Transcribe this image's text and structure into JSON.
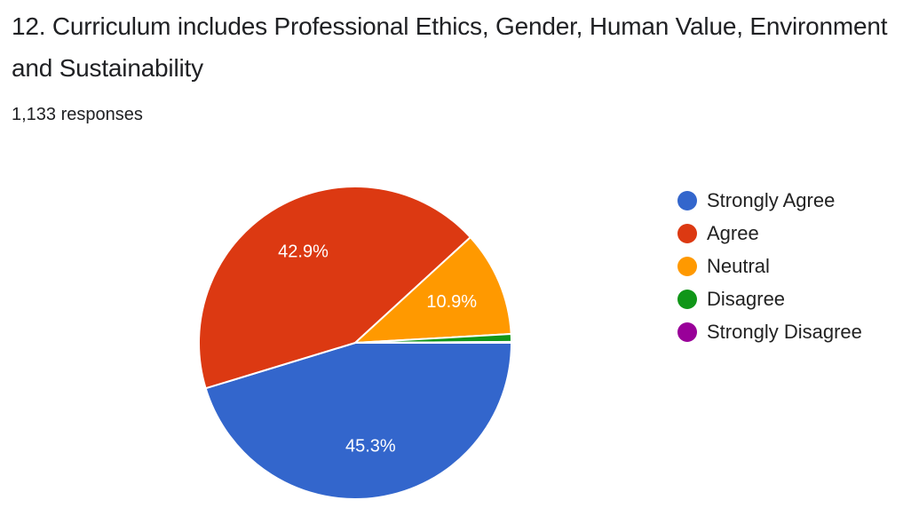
{
  "question": {
    "title": "12. Curriculum includes Professional Ethics, Gender, Human Value, Environment and Sustainability",
    "response_count": "1,133 responses"
  },
  "chart_data": {
    "type": "pie",
    "title": "12. Curriculum includes Professional Ethics, Gender, Human Value, Environment and Sustainability",
    "categories": [
      "Strongly Agree",
      "Agree",
      "Neutral",
      "Disagree",
      "Strongly Disagree"
    ],
    "values": [
      45.3,
      42.9,
      10.9,
      0.8,
      0.1
    ],
    "data_labels": [
      "45.3%",
      "42.9%",
      "10.9%",
      "",
      ""
    ],
    "colors": [
      "#3366cc",
      "#dc3912",
      "#ff9900",
      "#109618",
      "#990099"
    ],
    "legend_position": "right"
  }
}
